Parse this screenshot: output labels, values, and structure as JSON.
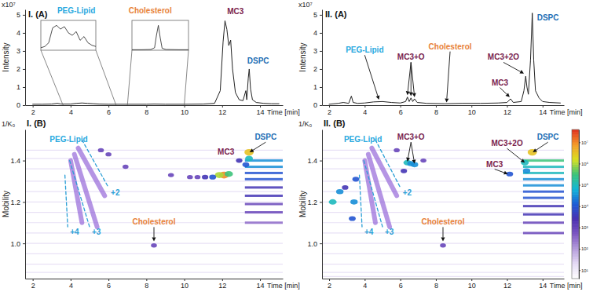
{
  "chart_data": [
    {
      "type": "line",
      "title": "I. (A)",
      "xlabel": "Time [min]",
      "ylabel": "Intensity",
      "y_multiplier": "x10⁷",
      "xlim": [
        1.6,
        15.2
      ],
      "xticks": [
        2,
        4,
        6,
        8,
        10,
        12,
        14
      ],
      "ylim": [
        0,
        5.3
      ],
      "yticks": [
        0,
        1,
        2,
        3,
        4,
        5
      ],
      "series": [
        {
          "color": "#222222",
          "x": [
            2.0,
            2.5,
            3.0,
            3.3,
            3.5,
            4.0,
            4.3,
            4.6,
            4.9,
            5.2,
            5.5,
            6.0,
            7.0,
            8.0,
            8.4,
            9.0,
            10.0,
            11.0,
            11.6,
            11.9,
            12.05,
            12.15,
            12.25,
            12.35,
            12.45,
            12.55,
            12.7,
            12.9,
            13.1,
            13.25,
            13.3,
            13.38,
            13.43,
            13.5,
            13.6,
            13.8,
            14.2,
            14.6,
            15.0
          ],
          "values": [
            0.05,
            0.05,
            0.06,
            0.1,
            0.06,
            0.06,
            0.1,
            0.12,
            0.1,
            0.08,
            0.06,
            0.05,
            0.05,
            0.05,
            0.06,
            0.05,
            0.05,
            0.06,
            0.1,
            0.8,
            3.5,
            4.67,
            4.2,
            3.3,
            3.6,
            2.0,
            0.7,
            0.3,
            0.25,
            0.8,
            0.3,
            1.5,
            2.0,
            0.9,
            0.3,
            0.15,
            0.1,
            0.08,
            0.08
          ]
        }
      ],
      "insets": [
        {
          "type": "line",
          "xlim": [
            3.6,
            6.4
          ],
          "ylim": [
            0,
            1.2
          ],
          "tick_labels": false,
          "series": [
            {
              "color": "#222222",
              "x": [
                3.6,
                3.8,
                4.0,
                4.2,
                4.4,
                4.6,
                4.8,
                5.0,
                5.2,
                5.4,
                5.6,
                5.8,
                6.0,
                6.2,
                6.4
              ],
              "values": [
                0.1,
                0.15,
                0.3,
                0.9,
                1.0,
                0.85,
                0.95,
                0.7,
                0.6,
                0.75,
                0.4,
                0.55,
                0.3,
                0.2,
                0.15
              ]
            }
          ]
        },
        {
          "type": "line",
          "xlim": [
            7.0,
            10.0
          ],
          "ylim": [
            0,
            1.2
          ],
          "tick_labels": false,
          "series": [
            {
              "color": "#222222",
              "x": [
                7.0,
                7.5,
                8.0,
                8.2,
                8.3,
                8.4,
                8.5,
                8.6,
                8.8,
                9.5,
                10.0
              ],
              "values": [
                0.02,
                0.02,
                0.03,
                0.1,
                0.6,
                1.0,
                0.5,
                0.08,
                0.03,
                0.02,
                0.02
              ]
            }
          ]
        }
      ],
      "annotations": [
        {
          "text": "PEG-Lipid",
          "x": 4.3,
          "y": 5.1,
          "color": "#29a9e0"
        },
        {
          "text": "Cholesterol",
          "x": 8.2,
          "y": 5.1,
          "color": "#e8823a"
        },
        {
          "text": "MC3",
          "x": 12.7,
          "y": 5.05,
          "color": "#7b1e4e"
        },
        {
          "text": "DSPC",
          "x": 13.9,
          "y": 2.3,
          "color": "#1f6fb5"
        }
      ]
    },
    {
      "type": "line",
      "title": "II. (A)",
      "xlabel": "Time [min]",
      "ylabel": "Intensity",
      "y_multiplier": "x10⁷",
      "xlim": [
        1.6,
        15.2
      ],
      "xticks": [
        2,
        4,
        6,
        8,
        10,
        12,
        14
      ],
      "ylim": [
        0,
        5.3
      ],
      "yticks": [
        0,
        1,
        2,
        3,
        4,
        5
      ],
      "series": [
        {
          "color": "#222222",
          "x": [
            2.0,
            2.5,
            2.8,
            3.1,
            3.25,
            3.35,
            3.6,
            4.0,
            4.5,
            5.0,
            5.5,
            6.0,
            6.3,
            6.4,
            6.5,
            6.6,
            6.7,
            6.8,
            6.95,
            7.5,
            8.5,
            9.5,
            10.5,
            11.5,
            12.0,
            12.2,
            12.35,
            12.8,
            12.95,
            13.05,
            13.12,
            13.2,
            13.32,
            13.42,
            13.5,
            13.6,
            13.8,
            14.0,
            14.4,
            15.0
          ],
          "values": [
            0.05,
            0.1,
            0.15,
            0.1,
            0.5,
            0.15,
            0.1,
            0.12,
            0.18,
            0.2,
            0.15,
            0.12,
            0.2,
            0.45,
            0.2,
            0.4,
            0.2,
            0.35,
            0.15,
            0.1,
            0.08,
            0.1,
            0.1,
            0.12,
            0.15,
            0.35,
            0.15,
            0.2,
            0.8,
            1.6,
            1.0,
            0.6,
            2.5,
            5.1,
            2.5,
            0.8,
            0.4,
            0.2,
            0.15,
            0.12
          ]
        }
      ],
      "annotations": [
        {
          "text": "PEG-Lipid",
          "x": 4.0,
          "y": 2.9,
          "color": "#29a9e0",
          "arrows": [
            [
              4.8,
              0.3
            ]
          ]
        },
        {
          "text": "MC3+O",
          "x": 6.6,
          "y": 2.5,
          "color": "#7b1e4e",
          "arrows": [
            [
              6.4,
              0.55
            ],
            [
              6.6,
              0.5
            ],
            [
              6.8,
              0.45
            ]
          ]
        },
        {
          "text": "Cholesterol",
          "x": 8.8,
          "y": 3.1,
          "color": "#e8823a",
          "arrows": [
            [
              8.6,
              0.15
            ]
          ]
        },
        {
          "text": "MC3+2O",
          "x": 11.8,
          "y": 2.5,
          "color": "#7b1e4e",
          "arrows": [
            [
              12.95,
              1.75
            ]
          ]
        },
        {
          "text": "MC3",
          "x": 11.6,
          "y": 1.1,
          "color": "#7b1e4e",
          "arrows": [
            [
              12.15,
              0.45
            ]
          ]
        },
        {
          "text": "DSPC",
          "x": 14.3,
          "y": 4.7,
          "color": "#1f6fb5"
        }
      ]
    },
    {
      "type": "heatmap",
      "title": "I. (B)",
      "xlabel": "Time [min]",
      "ylabel": "Mobility",
      "yunit": "1/K₀",
      "xlim": [
        1.6,
        15.2
      ],
      "xticks": [
        2,
        4,
        6,
        8,
        10,
        12,
        14
      ],
      "ylim": [
        0.83,
        1.55
      ],
      "yticks": [
        {
          "value": 1,
          "label": "1.0"
        },
        1.2,
        1.4
      ],
      "color_range": [
        0.6,
        7.6
      ],
      "series": [
        {
          "type": "rule",
          "color": "#d9cdef",
          "values": [
            1.45,
            1.41,
            1.36,
            1.3,
            1.25,
            1.2,
            1.15,
            1.1,
            1.05,
            1.0,
            0.95,
            0.9,
            0.86
          ]
        },
        {
          "type": "streak",
          "x0": [
            13.2,
            13.2,
            13.2,
            13.2,
            13.2,
            13.2,
            13.2,
            13.2,
            13.2
          ],
          "x1": [
            15.2,
            15.2,
            15.2,
            15.2,
            15.2,
            15.2,
            15.2,
            15.2,
            15.2
          ],
          "values": [
            1.4,
            1.37,
            1.34,
            1.31,
            1.27,
            1.23,
            1.19,
            1.15,
            1.1
          ],
          "intensity": [
            4.5,
            4.5,
            4,
            4,
            3.5,
            3.5,
            3,
            3,
            2.5
          ]
        },
        {
          "type": "line",
          "color": "#8d5cd6",
          "line_style": "solid",
          "x": [
            4.4,
            5.8
          ],
          "values": [
            1.46,
            1.23
          ]
        },
        {
          "type": "line",
          "color": "#8d5cd6",
          "line_style": "solid",
          "x": [
            4.2,
            5.4
          ],
          "values": [
            1.43,
            1.08
          ]
        },
        {
          "type": "line",
          "color": "#8d5cd6",
          "line_style": "solid",
          "x": [
            4.0,
            4.6
          ],
          "values": [
            1.4,
            1.1
          ]
        },
        {
          "type": "scatter",
          "x": [
            12.1,
            11.85,
            12.35,
            11.5,
            11.1,
            10.7,
            10.3,
            9.3,
            13.42,
            13.42,
            5.6,
            6.0,
            6.9,
            8.4,
            13.25,
            12.9
          ],
          "values": [
            1.33,
            1.33,
            1.335,
            1.32,
            1.32,
            1.32,
            1.32,
            1.33,
            1.44,
            1.41,
            1.45,
            1.43,
            1.37,
            0.99,
            1.38,
            1.4
          ],
          "intensity": [
            7,
            6,
            5.5,
            4,
            3.5,
            3,
            3,
            3,
            6.5,
            5,
            3,
            3,
            3,
            3,
            4,
            3.5
          ]
        },
        {
          "type": "line",
          "name": "+2",
          "color": "#2a9fd6",
          "line_style": "dashed",
          "x": [
            4.6,
            6.0
          ],
          "values": [
            1.5,
            1.27
          ]
        },
        {
          "type": "line",
          "name": "+3",
          "color": "#2a9fd6",
          "line_style": "dashed",
          "x": [
            3.95,
            5.0
          ],
          "values": [
            1.4,
            1.08
          ]
        },
        {
          "type": "line",
          "name": "+4",
          "color": "#2a9fd6",
          "line_style": "dashed",
          "x": [
            3.7,
            3.85
          ],
          "values": [
            1.33,
            1.08
          ]
        }
      ],
      "annotations": [
        {
          "text": "PEG-Lipid",
          "x": 3.9,
          "y": 1.49,
          "color": "#29a9e0"
        },
        {
          "text": "Cholesterol",
          "x": 8.4,
          "y": 1.09,
          "color": "#e8823a",
          "arrows": [
            [
              8.4,
              1.01
            ]
          ]
        },
        {
          "text": "MC3",
          "x": 12.2,
          "y": 1.43,
          "color": "#7b1e4e"
        },
        {
          "text": "DSPC",
          "x": 14.3,
          "y": 1.5,
          "color": "#1f6fb5",
          "arrows": [
            [
              13.45,
              1.44
            ]
          ]
        }
      ]
    },
    {
      "type": "heatmap",
      "title": "II. (B)",
      "xlabel": "Time [min]",
      "ylabel": "Mobility",
      "yunit": "1/K₀",
      "xlim": [
        1.6,
        15.2
      ],
      "xticks": [
        2,
        4,
        6,
        8,
        10,
        12,
        14
      ],
      "ylim": [
        0.83,
        1.55
      ],
      "yticks": [
        {
          "value": 1,
          "label": "1.0"
        },
        1.2,
        1.4
      ],
      "color_range": [
        0.6,
        7.6
      ],
      "colorbar_ticks": [
        {
          "value": 1,
          "label": "10¹"
        },
        {
          "value": 2,
          "label": "10²"
        },
        {
          "value": 3,
          "label": "10³"
        },
        {
          "value": 4,
          "label": "10⁴"
        },
        {
          "value": 5,
          "label": "10⁵"
        },
        {
          "value": 6,
          "label": "10⁶"
        },
        {
          "value": 7,
          "label": "10⁷"
        }
      ],
      "series": [
        {
          "type": "rule",
          "color": "#d9cdef",
          "values": [
            1.45,
            1.41,
            1.36,
            1.3,
            1.25,
            1.2,
            1.15,
            1.1,
            1.05,
            1.0,
            0.95,
            0.9,
            0.86,
            0.84
          ]
        },
        {
          "type": "streak",
          "x0": [
            12.9,
            12.9,
            12.9,
            12.9,
            12.9,
            12.9,
            12.9,
            12.9,
            12.9,
            12.9,
            12.9
          ],
          "x1": [
            15.2,
            15.2,
            15.2,
            15.2,
            15.2,
            15.2,
            15.2,
            15.2,
            15.2,
            15.2,
            15.2
          ],
          "values": [
            1.4,
            1.37,
            1.34,
            1.31,
            1.28,
            1.25,
            1.22,
            1.18,
            1.14,
            1.1,
            1.05
          ],
          "intensity": [
            5.5,
            5,
            5,
            4.5,
            4.5,
            4,
            4,
            3.5,
            3.5,
            3,
            3
          ]
        },
        {
          "type": "line",
          "color": "#8d5cd6",
          "line_style": "solid",
          "x": [
            4.4,
            5.8
          ],
          "values": [
            1.46,
            1.23
          ]
        },
        {
          "type": "line",
          "color": "#8d5cd6",
          "line_style": "solid",
          "x": [
            4.2,
            5.4
          ],
          "values": [
            1.43,
            1.08
          ]
        },
        {
          "type": "line",
          "color": "#8d5cd6",
          "line_style": "solid",
          "x": [
            4.0,
            4.6
          ],
          "values": [
            1.4,
            1.1
          ]
        },
        {
          "type": "scatter",
          "x": [
            6.4,
            6.6,
            6.8,
            6.2,
            12.15,
            13.0,
            13.1,
            13.42,
            2.2,
            2.6,
            3.3,
            3.5,
            3.4,
            2.9,
            8.4,
            5.8,
            7.3
          ],
          "values": [
            1.39,
            1.385,
            1.38,
            1.35,
            1.335,
            1.39,
            1.35,
            1.44,
            1.2,
            1.25,
            1.12,
            1.31,
            1.2,
            1.27,
            0.99,
            1.45,
            1.4
          ],
          "intensity": [
            5,
            4.5,
            4.5,
            3.5,
            4,
            5,
            4.5,
            6.5,
            5,
            4.5,
            4,
            4,
            4.5,
            3.5,
            3,
            3,
            3
          ]
        },
        {
          "type": "line",
          "name": "+2",
          "color": "#2a9fd6",
          "line_style": "dashed",
          "x": [
            4.6,
            6.0
          ],
          "values": [
            1.5,
            1.27
          ]
        },
        {
          "type": "line",
          "name": "+3",
          "color": "#2a9fd6",
          "line_style": "dashed",
          "x": [
            3.95,
            5.0
          ],
          "values": [
            1.4,
            1.08
          ]
        },
        {
          "type": "line",
          "name": "+4",
          "color": "#2a9fd6",
          "line_style": "dashed",
          "x": [
            3.7,
            3.85
          ],
          "values": [
            1.33,
            1.08
          ]
        }
      ],
      "annotations": [
        {
          "text": "PEG-Lipid",
          "x": 3.9,
          "y": 1.49,
          "color": "#29a9e0"
        },
        {
          "text": "MC3+O",
          "x": 6.6,
          "y": 1.5,
          "color": "#7b1e4e",
          "arrows": [
            [
              6.4,
              1.395
            ],
            [
              6.8,
              1.385
            ]
          ]
        },
        {
          "text": "Cholesterol",
          "x": 8.4,
          "y": 1.09,
          "color": "#e8823a",
          "arrows": [
            [
              8.4,
              1.01
            ]
          ]
        },
        {
          "text": "MC3+2O",
          "x": 12.0,
          "y": 1.47,
          "color": "#7b1e4e",
          "arrows": [
            [
              13.0,
              1.39
            ]
          ]
        },
        {
          "text": "MC3",
          "x": 11.3,
          "y": 1.37,
          "color": "#7b1e4e",
          "arrows": [
            [
              12.05,
              1.335
            ]
          ]
        },
        {
          "text": "DSPC",
          "x": 14.3,
          "y": 1.5,
          "color": "#1f6fb5",
          "arrows": [
            [
              13.45,
              1.44
            ]
          ]
        }
      ]
    }
  ]
}
